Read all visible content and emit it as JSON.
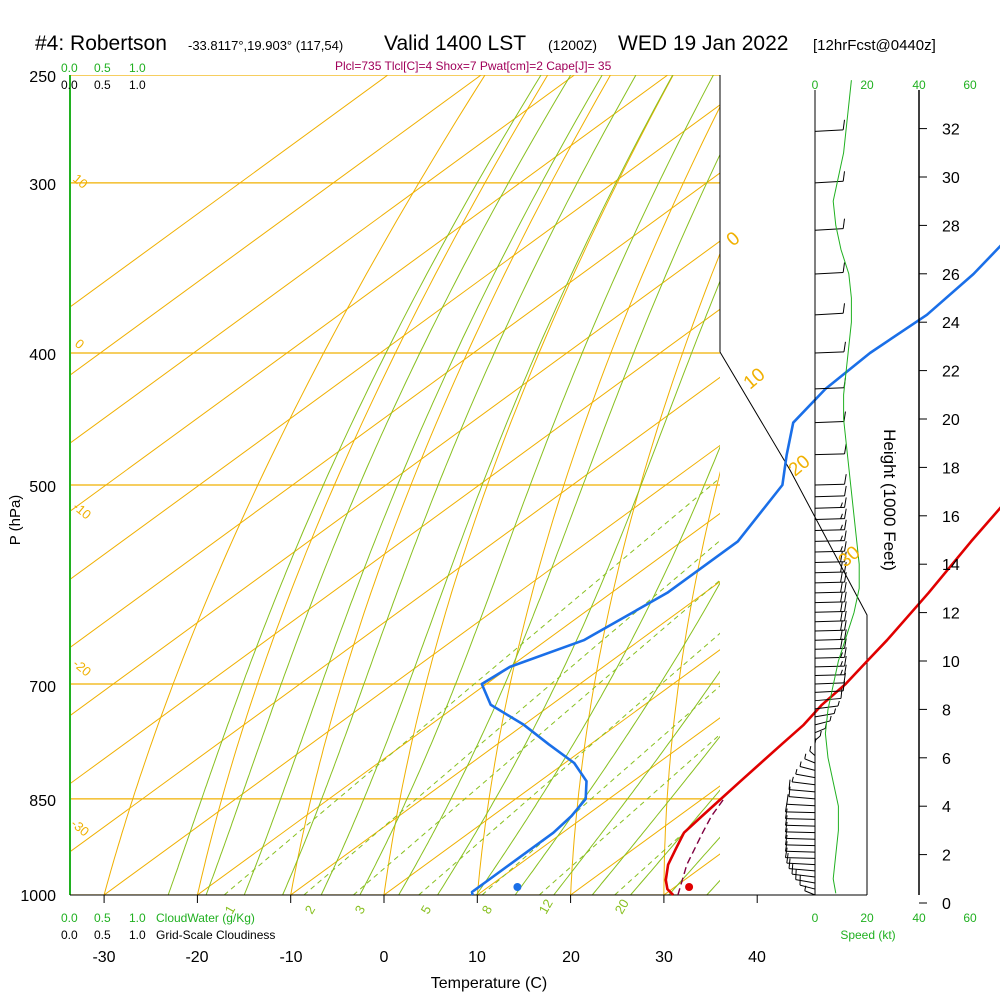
{
  "colors": {
    "temperature": "#e00000",
    "dewpoint": "#1a6fe8",
    "parcel": "#800040",
    "isotherm": "#f0b000",
    "dry_adiabat": "#f0b000",
    "moist_adiabat": "#88c020",
    "mixing_ratio": "#88c020",
    "cloud_water": "#20b020",
    "index_text": "#a0005a",
    "axis": "#000000"
  },
  "chart_data": {
    "type": "line",
    "title_main": "#4: Robertson",
    "title_coords": "-33.8117°,19.903° (117,54)",
    "title_valid": "Valid 1400 LST",
    "title_z": "(1200Z)",
    "title_date": "WED 19 Jan 2022",
    "title_fcst": "[12hrFcst@0440z]",
    "indices": "Plcl=735 Tlcl[C]=4 Shox=7 Pwat[cm]=2 Cape[J]= 35",
    "xlabel": "Temperature (C)",
    "ylabel": "P (hPa)",
    "x_ticks": [
      "-30",
      "-20",
      "-10",
      "0",
      "10",
      "20",
      "30",
      "40"
    ],
    "pressure_ticks": [
      "250",
      "300",
      "400",
      "500",
      "700",
      "850",
      "1000"
    ],
    "height_axis_label": "Height (1000 Feet)",
    "height_ticks": [
      "0",
      "2",
      "4",
      "6",
      "8",
      "10",
      "12",
      "14",
      "16",
      "18",
      "20",
      "22",
      "24",
      "26",
      "28",
      "30",
      "32"
    ],
    "cloud_scale_top_green": [
      "0.0",
      "0.5",
      "1.0"
    ],
    "cloud_scale_top_black": [
      "0.0",
      "0.5",
      "1.0"
    ],
    "cloud_scale_bottom_green": [
      "0.0",
      "0.5",
      "1.0"
    ],
    "cloud_scale_bottom_black": [
      "0.0",
      "0.5",
      "1.0"
    ],
    "cloud_water_label": "CloudWater (g/Kg)",
    "cloudiness_label": "Grid-Scale Cloudiness",
    "speed_ticks": [
      "0",
      "20",
      "40",
      "60"
    ],
    "speed_label": "Speed (kt)",
    "isotherm_labels": [
      "0",
      "10",
      "20",
      "30"
    ],
    "dry_adiabat_labels": [
      "10",
      "0",
      "-10",
      "-20",
      "-30"
    ],
    "mixing_ratio_labels": [
      "1",
      "2",
      "3",
      "5",
      "8",
      "12",
      "20"
    ],
    "series": [
      {
        "name": "temperature",
        "points": [
          [
            1000,
            31.0
          ],
          [
            990,
            29.5
          ],
          [
            975,
            28.0
          ],
          [
            950,
            26.0
          ],
          [
            925,
            24.5
          ],
          [
            900,
            23.0
          ],
          [
            875,
            22.5
          ],
          [
            850,
            22.0
          ],
          [
            825,
            21.5
          ],
          [
            800,
            21.0
          ],
          [
            775,
            20.5
          ],
          [
            750,
            20.0
          ],
          [
            725,
            19.0
          ],
          [
            700,
            18.5
          ],
          [
            675,
            17.5
          ],
          [
            650,
            16.5
          ],
          [
            600,
            14.0
          ],
          [
            550,
            11.0
          ],
          [
            500,
            8.0
          ],
          [
            450,
            3.0
          ],
          [
            400,
            -3.5
          ],
          [
            350,
            -10.5
          ],
          [
            300,
            -19.5
          ],
          [
            265,
            -27.0
          ]
        ]
      },
      {
        "name": "dewpoint",
        "points": [
          [
            1000,
            9.5
          ],
          [
            995,
            9.0
          ],
          [
            975,
            9.0
          ],
          [
            950,
            9.0
          ],
          [
            925,
            9.0
          ],
          [
            900,
            9.0
          ],
          [
            875,
            8.5
          ],
          [
            850,
            7.5
          ],
          [
            825,
            5.0
          ],
          [
            800,
            1.0
          ],
          [
            775,
            -4.5
          ],
          [
            750,
            -10.0
          ],
          [
            725,
            -16.5
          ],
          [
            700,
            -20.5
          ],
          [
            680,
            -20.0
          ],
          [
            650,
            -16.0
          ],
          [
            600,
            -14.0
          ],
          [
            550,
            -14.0
          ],
          [
            500,
            -17.5
          ],
          [
            475,
            -21.5
          ],
          [
            450,
            -25.5
          ],
          [
            425,
            -27.0
          ],
          [
            400,
            -27.5
          ],
          [
            375,
            -27.0
          ],
          [
            350,
            -28.0
          ],
          [
            300,
            -32.0
          ],
          [
            265,
            -37.5
          ]
        ]
      },
      {
        "name": "parcel",
        "points": [
          [
            1000,
            31.5
          ],
          [
            950,
            28.0
          ],
          [
            900,
            25.0
          ],
          [
            875,
            23.5
          ],
          [
            850,
            22.3
          ]
        ]
      },
      {
        "name": "height_profile",
        "points": [
          [
            0.4,
            8
          ],
          [
            1.0,
            7
          ],
          [
            2,
            8
          ],
          [
            3,
            9
          ],
          [
            4,
            9
          ],
          [
            5,
            7
          ],
          [
            6,
            5
          ],
          [
            7,
            4
          ],
          [
            8,
            5
          ],
          [
            9,
            7
          ],
          [
            10,
            9
          ],
          [
            11,
            12
          ],
          [
            12,
            15
          ],
          [
            13,
            17
          ],
          [
            14,
            17
          ],
          [
            15,
            16
          ],
          [
            16,
            15
          ],
          [
            17,
            14
          ],
          [
            18,
            13
          ],
          [
            19,
            12
          ],
          [
            20,
            11
          ],
          [
            21,
            11
          ],
          [
            22,
            12
          ],
          [
            23,
            13
          ],
          [
            24,
            14
          ],
          [
            25,
            14
          ],
          [
            26,
            13
          ],
          [
            27,
            10
          ],
          [
            28,
            8
          ],
          [
            29,
            7
          ],
          [
            30,
            9
          ],
          [
            31,
            11
          ],
          [
            32,
            12
          ],
          [
            33,
            13
          ],
          [
            34,
            14
          ]
        ]
      }
    ],
    "surface_temperature": 32.7,
    "surface_dewpoint": 14.3,
    "winds_kt": [
      [
        1000,
        8,
        160
      ],
      [
        990,
        12,
        150
      ],
      [
        980,
        12,
        140
      ],
      [
        970,
        13,
        130
      ],
      [
        960,
        13,
        120
      ],
      [
        950,
        13,
        110
      ],
      [
        940,
        13,
        100
      ],
      [
        930,
        13,
        100
      ],
      [
        920,
        14,
        100
      ],
      [
        910,
        13,
        100
      ],
      [
        900,
        13,
        100
      ],
      [
        890,
        13,
        100
      ],
      [
        880,
        12,
        100
      ],
      [
        870,
        12,
        100
      ],
      [
        860,
        12,
        110
      ],
      [
        850,
        10,
        120
      ],
      [
        840,
        10,
        120
      ],
      [
        830,
        9,
        130
      ],
      [
        820,
        8,
        140
      ],
      [
        810,
        8,
        150
      ],
      [
        800,
        8,
        160
      ],
      [
        790,
        7,
        170
      ],
      [
        780,
        7,
        180
      ],
      [
        770,
        6,
        190
      ],
      [
        760,
        6,
        200
      ],
      [
        750,
        6,
        210
      ],
      [
        740,
        7,
        220
      ],
      [
        730,
        8,
        230
      ],
      [
        720,
        10,
        240
      ],
      [
        710,
        12,
        250
      ],
      [
        700,
        14,
        255
      ],
      [
        690,
        15,
        260
      ],
      [
        680,
        16,
        260
      ],
      [
        670,
        18,
        260
      ],
      [
        660,
        20,
        260
      ],
      [
        650,
        20,
        260
      ],
      [
        640,
        20,
        260
      ],
      [
        630,
        20,
        260
      ],
      [
        620,
        20,
        260
      ],
      [
        610,
        20,
        260
      ],
      [
        600,
        20,
        260
      ],
      [
        590,
        20,
        260
      ],
      [
        580,
        20,
        260
      ],
      [
        570,
        20,
        260
      ],
      [
        560,
        18,
        260
      ],
      [
        550,
        18,
        260
      ],
      [
        540,
        16,
        260
      ],
      [
        530,
        15,
        260
      ],
      [
        520,
        15,
        260
      ],
      [
        510,
        14,
        260
      ],
      [
        500,
        14,
        260
      ],
      [
        475,
        12,
        260
      ],
      [
        450,
        12,
        255
      ],
      [
        425,
        13,
        255
      ],
      [
        400,
        14,
        255
      ],
      [
        375,
        14,
        250
      ],
      [
        350,
        13,
        250
      ],
      [
        325,
        13,
        250
      ],
      [
        300,
        13,
        250
      ],
      [
        275,
        14,
        250
      ]
    ]
  }
}
